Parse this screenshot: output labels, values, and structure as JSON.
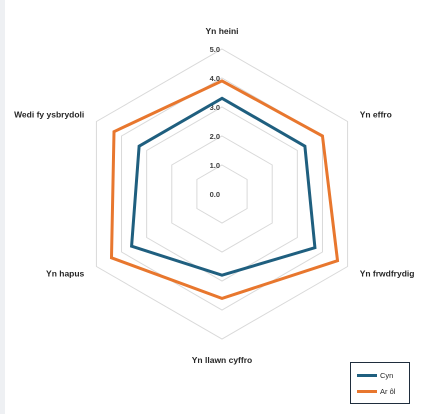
{
  "chart_data": {
    "type": "radar",
    "categories": [
      "Yn heini",
      "Yn effro",
      "Yn frwdfrydig",
      "Yn llawn cyffro",
      "Yn hapus",
      "Wedi fy ysbrydoli"
    ],
    "r_ticks": [
      "0.0",
      "1.0",
      "2.0",
      "3.0",
      "4.0",
      "5.0"
    ],
    "rlim": [
      0,
      5
    ],
    "series": [
      {
        "name": "Cyn",
        "color": "#1f5f7f",
        "values": [
          3.3,
          3.3,
          3.7,
          2.8,
          3.6,
          3.3
        ]
      },
      {
        "name": "Ar ôl",
        "color": "#e8772e",
        "values": [
          3.9,
          4.0,
          4.6,
          3.6,
          4.4,
          4.3
        ]
      }
    ],
    "grid": true,
    "legend_position": "bottom-right"
  }
}
